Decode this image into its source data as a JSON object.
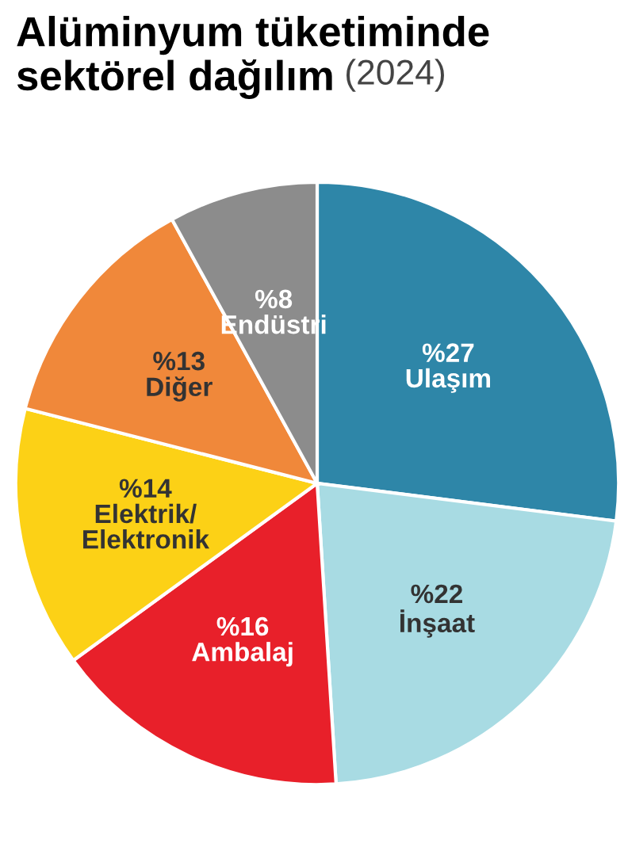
{
  "chart_data": {
    "type": "pie",
    "title": "Alüminyum tüketiminde sektörel dağılım",
    "subtitle": "(2024)",
    "categories": [
      "Ulaşım",
      "İnşaat",
      "Ambalaj",
      "Elektrik/\nElektronik",
      "Diğer",
      "Endüstri"
    ],
    "values": [
      27,
      22,
      16,
      14,
      13,
      8
    ],
    "value_labels": [
      "%27",
      "%22",
      "%16",
      "%14",
      "%13",
      "%8"
    ],
    "colors": [
      "#2e86a8",
      "#a8dbe3",
      "#e8202a",
      "#fcd116",
      "#f0883a",
      "#8c8c8c"
    ],
    "legend": false
  }
}
